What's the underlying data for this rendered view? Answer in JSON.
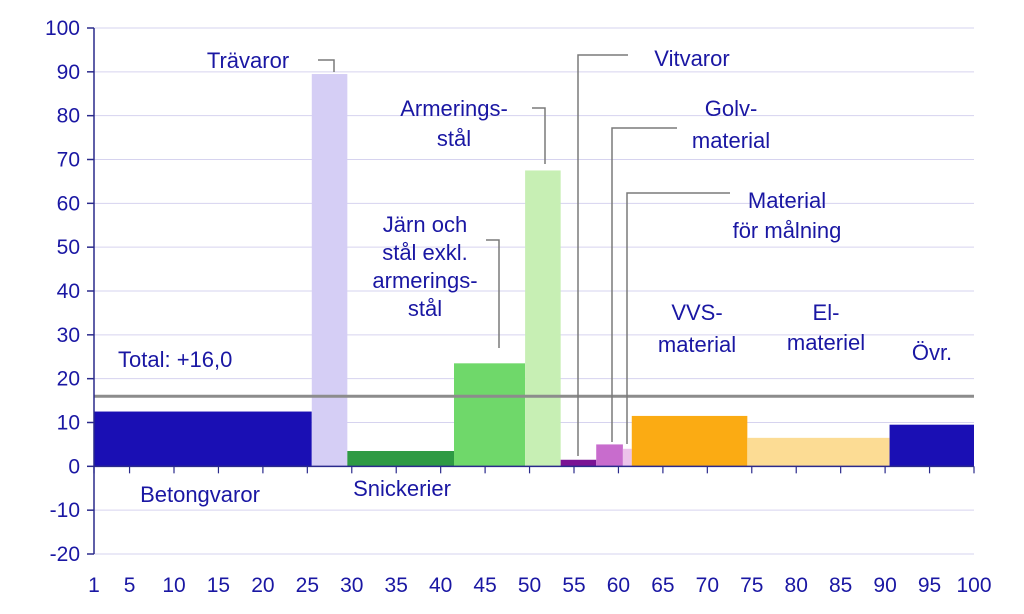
{
  "chart_data": {
    "type": "bar",
    "subtype": "variable-width",
    "xlim": [
      1,
      100
    ],
    "ylim": [
      -20,
      100
    ],
    "x_ticks": [
      "1",
      "5",
      "10",
      "15",
      "20",
      "25",
      "30",
      "35",
      "40",
      "45",
      "50",
      "55",
      "60",
      "65",
      "70",
      "75",
      "80",
      "85",
      "90",
      "95",
      "100"
    ],
    "x_tick_values": [
      1,
      5,
      10,
      15,
      20,
      25,
      30,
      35,
      40,
      45,
      50,
      55,
      60,
      65,
      70,
      75,
      80,
      85,
      90,
      95,
      100
    ],
    "y_ticks": [
      "-20",
      "-10",
      "0",
      "10",
      "20",
      "30",
      "40",
      "50",
      "60",
      "70",
      "80",
      "90",
      "100"
    ],
    "y_tick_values": [
      -20,
      -10,
      0,
      10,
      20,
      30,
      40,
      50,
      60,
      70,
      80,
      90,
      100
    ],
    "grid": true,
    "total": {
      "label": "Total: +16,0",
      "value": 16.0,
      "color": "#8c8c8c"
    },
    "bars": [
      {
        "name": "Betongvaror",
        "x0": 1,
        "x1": 25.5,
        "value": 12.5,
        "color": "#1a0fb4"
      },
      {
        "name": "Trävaror",
        "x0": 25.5,
        "x1": 29.5,
        "value": 89.5,
        "color": "#d5cef5"
      },
      {
        "name": "Snickerier",
        "x0": 29.5,
        "x1": 41.5,
        "value": 3.5,
        "color": "#2e9a44"
      },
      {
        "name": "Järn och stål exkl. armeringsstål",
        "x0": 41.5,
        "x1": 49.5,
        "value": 23.5,
        "color": "#6fd86a"
      },
      {
        "name": "Armeringsstål",
        "x0": 49.5,
        "x1": 53.5,
        "value": 67.5,
        "color": "#c7efb4"
      },
      {
        "name": "Vitvaror",
        "x0": 53.5,
        "x1": 57.5,
        "value": 1.5,
        "color": "#7a1394"
      },
      {
        "name": "Golvmaterial",
        "x0": 57.5,
        "x1": 60.5,
        "value": 5.0,
        "color": "#c86ccd"
      },
      {
        "name": "Material för målning",
        "x0": 60.5,
        "x1": 61.5,
        "value": 4.0,
        "color": "#ecc3ea"
      },
      {
        "name": "VVS-material",
        "x0": 61.5,
        "x1": 74.5,
        "value": 11.5,
        "color": "#fbab13"
      },
      {
        "name": "El-materiel",
        "x0": 74.5,
        "x1": 90.5,
        "value": 6.5,
        "color": "#fcdc94"
      },
      {
        "name": "Övr.",
        "x0": 90.5,
        "x1": 100,
        "value": 9.5,
        "color": "#1a0fb4"
      }
    ],
    "labels": {
      "betongvaror": [
        "Betongvaror"
      ],
      "travaror": [
        "Trävaror"
      ],
      "snickerier": [
        "Snickerier"
      ],
      "jarn": [
        "Järn och",
        "stål exkl.",
        "armerings-",
        "stål"
      ],
      "armering": [
        "Armerings-",
        "stål"
      ],
      "vitvaror": [
        "Vitvaror"
      ],
      "golv": [
        "Golv-",
        "material"
      ],
      "malning": [
        "Material",
        "för målning"
      ],
      "vvs": [
        "VVS-",
        "material"
      ],
      "el": [
        "El-",
        "materiel"
      ],
      "ovr": [
        "Övr."
      ]
    },
    "colors": {
      "axis_text": "#1a17a3",
      "grid": "#d6d3ef",
      "axis": "#2a2a8c",
      "leader": "#7a7a7a"
    }
  }
}
